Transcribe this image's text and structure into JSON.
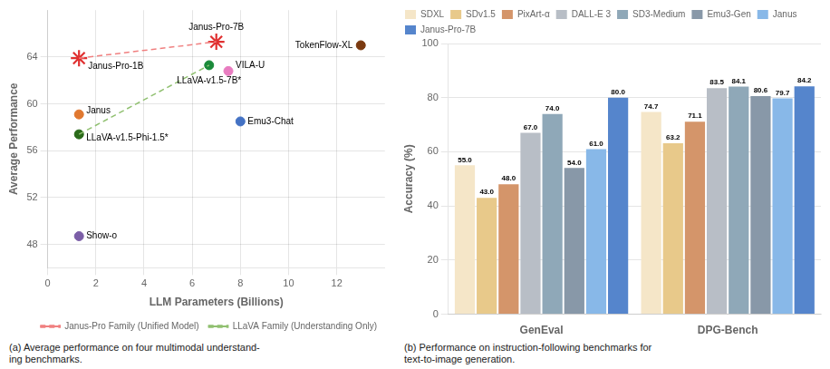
{
  "chart_data": [
    {
      "type": "scatter",
      "xlabel": "LLM Parameters (Billions)",
      "ylabel": "Average Performance",
      "xlim": [
        0,
        14
      ],
      "ylim": [
        46,
        68
      ],
      "xticks": [
        0,
        2,
        4,
        6,
        8,
        10,
        12
      ],
      "yticks": [
        48,
        52,
        56,
        60,
        64
      ],
      "grid": true,
      "legend": "lower right",
      "points": [
        {
          "name": "Janus-Pro-7B",
          "x": 7,
          "y": 65.3,
          "color": "#e03030",
          "marker": "star"
        },
        {
          "name": "Janus-Pro-1B",
          "x": 1.3,
          "y": 63.9,
          "color": "#e03030",
          "marker": "star"
        },
        {
          "name": "TokenFlow-XL",
          "x": 13,
          "y": 65.0,
          "color": "#7b3a10",
          "marker": "circle"
        },
        {
          "name": "LLaVA-v1.5-7B*",
          "x": 6.7,
          "y": 63.3,
          "color": "#1a8a3a",
          "marker": "circle"
        },
        {
          "name": "VILA-U",
          "x": 7.5,
          "y": 62.8,
          "color": "#e87cc0",
          "marker": "circle"
        },
        {
          "name": "Emu3-Chat",
          "x": 8,
          "y": 58.5,
          "color": "#4472c4",
          "marker": "circle"
        },
        {
          "name": "Janus",
          "x": 1.3,
          "y": 59.1,
          "color": "#e07830",
          "marker": "circle"
        },
        {
          "name": "LLaVA-v1.5-Phi-1.5*",
          "x": 1.3,
          "y": 57.4,
          "color": "#2a6a1a",
          "marker": "circle"
        },
        {
          "name": "Show-o",
          "x": 1.3,
          "y": 48.7,
          "color": "#7b5ea7",
          "marker": "circle"
        }
      ],
      "series": [
        {
          "name": "Janus-Pro Family (Unified Model)",
          "type": "line",
          "line_style": "dashed",
          "color": "#f08080",
          "x": [
            1.3,
            7
          ],
          "values": [
            63.9,
            65.3
          ]
        },
        {
          "name": "LLaVA Family (Understanding Only)",
          "type": "line",
          "line_style": "dashed",
          "color": "#90c070",
          "x": [
            1.3,
            6.7
          ],
          "values": [
            57.4,
            63.3
          ]
        }
      ],
      "caption": "(a) Average performance on four multimodal understand-\ning benchmarks."
    },
    {
      "type": "bar",
      "categories": [
        "GenEval",
        "DPG-Bench"
      ],
      "ylabel": "Accuracy (%)",
      "ylim": [
        0,
        100
      ],
      "yticks": [
        0,
        20,
        40,
        60,
        80,
        100
      ],
      "grid": "y",
      "legend": "upper left",
      "data_labels": true,
      "series": [
        {
          "name": "SDXL",
          "color": "#f5e6c8",
          "values": [
            55.0,
            74.7
          ],
          "value_labels": [
            "55.0",
            "74.7"
          ]
        },
        {
          "name": "SDv1.5",
          "color": "#e8c98a",
          "values": [
            43.0,
            63.2
          ],
          "value_labels": [
            "43.0",
            "63.2"
          ]
        },
        {
          "name": "PixArt-α",
          "color": "#d4956a",
          "values": [
            48.0,
            71.1
          ],
          "value_labels": [
            "48.0",
            "71.1"
          ]
        },
        {
          "name": "DALL-E 3",
          "color": "#b8bec6",
          "values": [
            67.0,
            83.5
          ],
          "value_labels": [
            "67.0",
            "83.5"
          ]
        },
        {
          "name": "SD3-Medium",
          "color": "#8fa8b8",
          "values": [
            74.0,
            84.1
          ],
          "value_labels": [
            "74.0",
            "84.1"
          ]
        },
        {
          "name": "Emu3-Gen",
          "color": "#8898a8",
          "values": [
            54.0,
            80.6
          ],
          "value_labels": [
            "54.0",
            "80.6"
          ]
        },
        {
          "name": "Janus",
          "color": "#88b8e8",
          "values": [
            61.0,
            79.7
          ],
          "value_labels": [
            "61.0",
            "79.7"
          ]
        },
        {
          "name": "Janus-Pro-7B",
          "color": "#5585cc",
          "values": [
            80.0,
            84.2
          ],
          "value_labels": [
            "80.0",
            "84.2"
          ]
        }
      ],
      "caption": "(b) Performance on instruction-following benchmarks for\ntext-to-image generation."
    }
  ]
}
